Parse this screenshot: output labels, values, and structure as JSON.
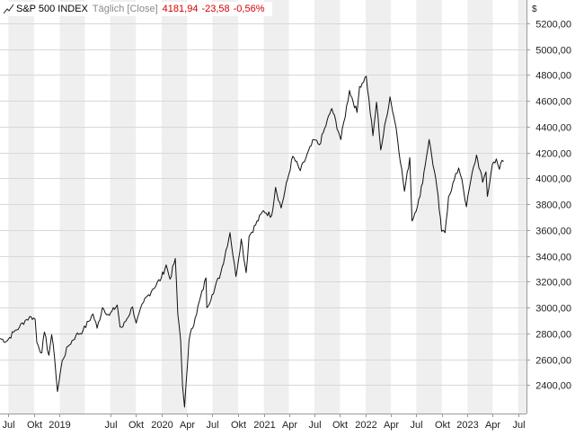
{
  "header": {
    "name": "S&P 500 INDEX",
    "mode": "Täglich [Close]",
    "last": "4181,94",
    "change_abs": "-23,58",
    "change_pct": "-0,56%"
  },
  "colors": {
    "line": "#111111",
    "negative": "#d40000",
    "band": "#efefef",
    "grid": "#d8d8d8"
  },
  "chart_data": {
    "type": "line",
    "title": "S&P 500 INDEX",
    "currency_label": "$",
    "x_ticks": [
      "Jul",
      "Okt",
      "2019",
      "Jul",
      "Okt",
      "2020",
      "Apr",
      "Jul",
      "Okt",
      "2021",
      "Apr",
      "Jul",
      "Okt",
      "2022",
      "Apr",
      "Jul",
      "Okt",
      "2023",
      "Apr",
      "Jul"
    ],
    "y_ticks": [
      "2400,00",
      "2600,00",
      "2800,00",
      "3000,00",
      "3200,00",
      "3400,00",
      "3600,00",
      "3800,00",
      "4000,00",
      "4200,00",
      "4400,00",
      "4600,00",
      "4800,00",
      "5000,00",
      "5200,00"
    ],
    "xlim": [
      "2018-06-01",
      "2023-07-31"
    ],
    "ylim": [
      2180,
      5380
    ],
    "grid": true,
    "series": [
      {
        "x": [
          "2018-06-01",
          "2018-06-25",
          "2018-07-20",
          "2018-08-10",
          "2018-08-30",
          "2018-09-20",
          "2018-10-05",
          "2018-10-11",
          "2018-10-29",
          "2018-11-07",
          "2018-11-23",
          "2018-12-03",
          "2018-12-14",
          "2018-12-24",
          "2019-01-10",
          "2019-01-31",
          "2019-02-28",
          "2019-03-25",
          "2019-04-30",
          "2019-05-15",
          "2019-06-03",
          "2019-06-28",
          "2019-07-26",
          "2019-08-05",
          "2019-08-15",
          "2019-09-19",
          "2019-10-02",
          "2019-10-28",
          "2019-11-29",
          "2019-12-31",
          "2020-01-17",
          "2020-01-31",
          "2020-02-19",
          "2020-02-28",
          "2020-03-09",
          "2020-03-16",
          "2020-03-23",
          "2020-04-08",
          "2020-04-30",
          "2020-06-08",
          "2020-06-11",
          "2020-06-30",
          "2020-07-31",
          "2020-09-02",
          "2020-09-23",
          "2020-10-12",
          "2020-10-30",
          "2020-11-09",
          "2020-12-31",
          "2021-01-29",
          "2021-02-12",
          "2021-03-04",
          "2021-04-15",
          "2021-05-12",
          "2021-06-30",
          "2021-07-19",
          "2021-08-30",
          "2021-09-02",
          "2021-10-04",
          "2021-11-04",
          "2021-12-01",
          "2021-12-10",
          "2022-01-03",
          "2022-01-27",
          "2022-02-09",
          "2022-02-24",
          "2022-03-29",
          "2022-04-20",
          "2022-05-20",
          "2022-06-08",
          "2022-06-16",
          "2022-07-15",
          "2022-08-16",
          "2022-09-13",
          "2022-09-30",
          "2022-10-12",
          "2022-10-25",
          "2022-11-30",
          "2022-12-12",
          "2022-12-28",
          "2023-01-12",
          "2023-02-02",
          "2023-02-24",
          "2023-03-08",
          "2023-03-13",
          "2023-03-31",
          "2023-04-14",
          "2023-04-25",
          "2023-05-05",
          "2023-05-10"
        ],
        "y": [
          2760,
          2740,
          2810,
          2850,
          2900,
          2930,
          2910,
          2730,
          2650,
          2810,
          2630,
          2790,
          2600,
          2350,
          2590,
          2700,
          2785,
          2820,
          2950,
          2840,
          3000,
          2940,
          3020,
          2850,
          2850,
          3005,
          2880,
          3040,
          3140,
          3230,
          3330,
          3220,
          3380,
          2950,
          2750,
          2390,
          2230,
          2750,
          2920,
          3230,
          3000,
          3100,
          3270,
          3580,
          3240,
          3530,
          3270,
          3550,
          3750,
          3710,
          3930,
          3770,
          4170,
          4060,
          4300,
          4260,
          4530,
          4540,
          4300,
          4680,
          4510,
          4710,
          4790,
          4330,
          4590,
          4220,
          4630,
          4390,
          3900,
          4160,
          3670,
          3860,
          4300,
          3930,
          3590,
          3580,
          3860,
          4080,
          3990,
          3780,
          3980,
          4180,
          3970,
          4050,
          3860,
          4110,
          4150,
          4070,
          4140,
          4130
        ]
      }
    ]
  }
}
